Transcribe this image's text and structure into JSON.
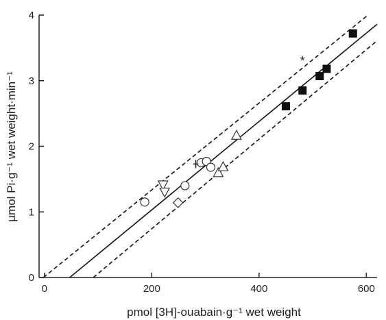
{
  "chart_data": {
    "type": "scatter",
    "title": "",
    "xlabel": "pmol [3H]-ouabain·g⁻¹ wet weight",
    "ylabel": "µmol Pi·g⁻¹ wet weight·min⁻¹",
    "xlim": [
      -10,
      620
    ],
    "ylim": [
      0,
      4
    ],
    "x_ticks": [
      0,
      200,
      400,
      600
    ],
    "y_ticks": [
      0,
      1,
      2,
      3,
      4
    ],
    "x_tick_labels": [
      "0",
      "200",
      "400",
      "600"
    ],
    "y_tick_labels": [
      "0",
      "1",
      "2",
      "3",
      "4"
    ],
    "grid": false,
    "legend": "none",
    "series": [
      {
        "marker": "circle-open",
        "points": [
          [
            187,
            1.15
          ],
          [
            262,
            1.4
          ],
          [
            292,
            1.75
          ],
          [
            302,
            1.77
          ],
          [
            310,
            1.68
          ]
        ]
      },
      {
        "marker": "triangle-down-open",
        "points": [
          [
            221,
            1.41
          ],
          [
            224,
            1.3
          ]
        ]
      },
      {
        "marker": "diamond-open",
        "points": [
          [
            249,
            1.14
          ]
        ]
      },
      {
        "marker": "triangle-up-open",
        "points": [
          [
            324,
            1.6
          ],
          [
            333,
            1.69
          ],
          [
            358,
            2.17
          ]
        ]
      },
      {
        "marker": "square-filled",
        "points": [
          [
            450,
            2.61
          ],
          [
            481,
            2.85
          ],
          [
            513,
            3.07
          ],
          [
            526,
            3.18
          ],
          [
            575,
            3.72
          ]
        ]
      },
      {
        "marker": "cross",
        "points": [
          [
            282,
            1.73
          ]
        ]
      },
      {
        "marker": "asterisk",
        "points": [
          [
            481,
            3.33
          ]
        ]
      }
    ],
    "regression": {
      "style": "solid",
      "x": [
        47,
        620
      ],
      "y": [
        0.0,
        3.86
      ]
    },
    "confidence_bands": [
      {
        "style": "dashed",
        "x": [
          -2,
          603
        ],
        "y": [
          0.0,
          4.0
        ]
      },
      {
        "style": "dashed",
        "x": [
          91,
          620
        ],
        "y": [
          0.0,
          3.61
        ]
      }
    ]
  }
}
